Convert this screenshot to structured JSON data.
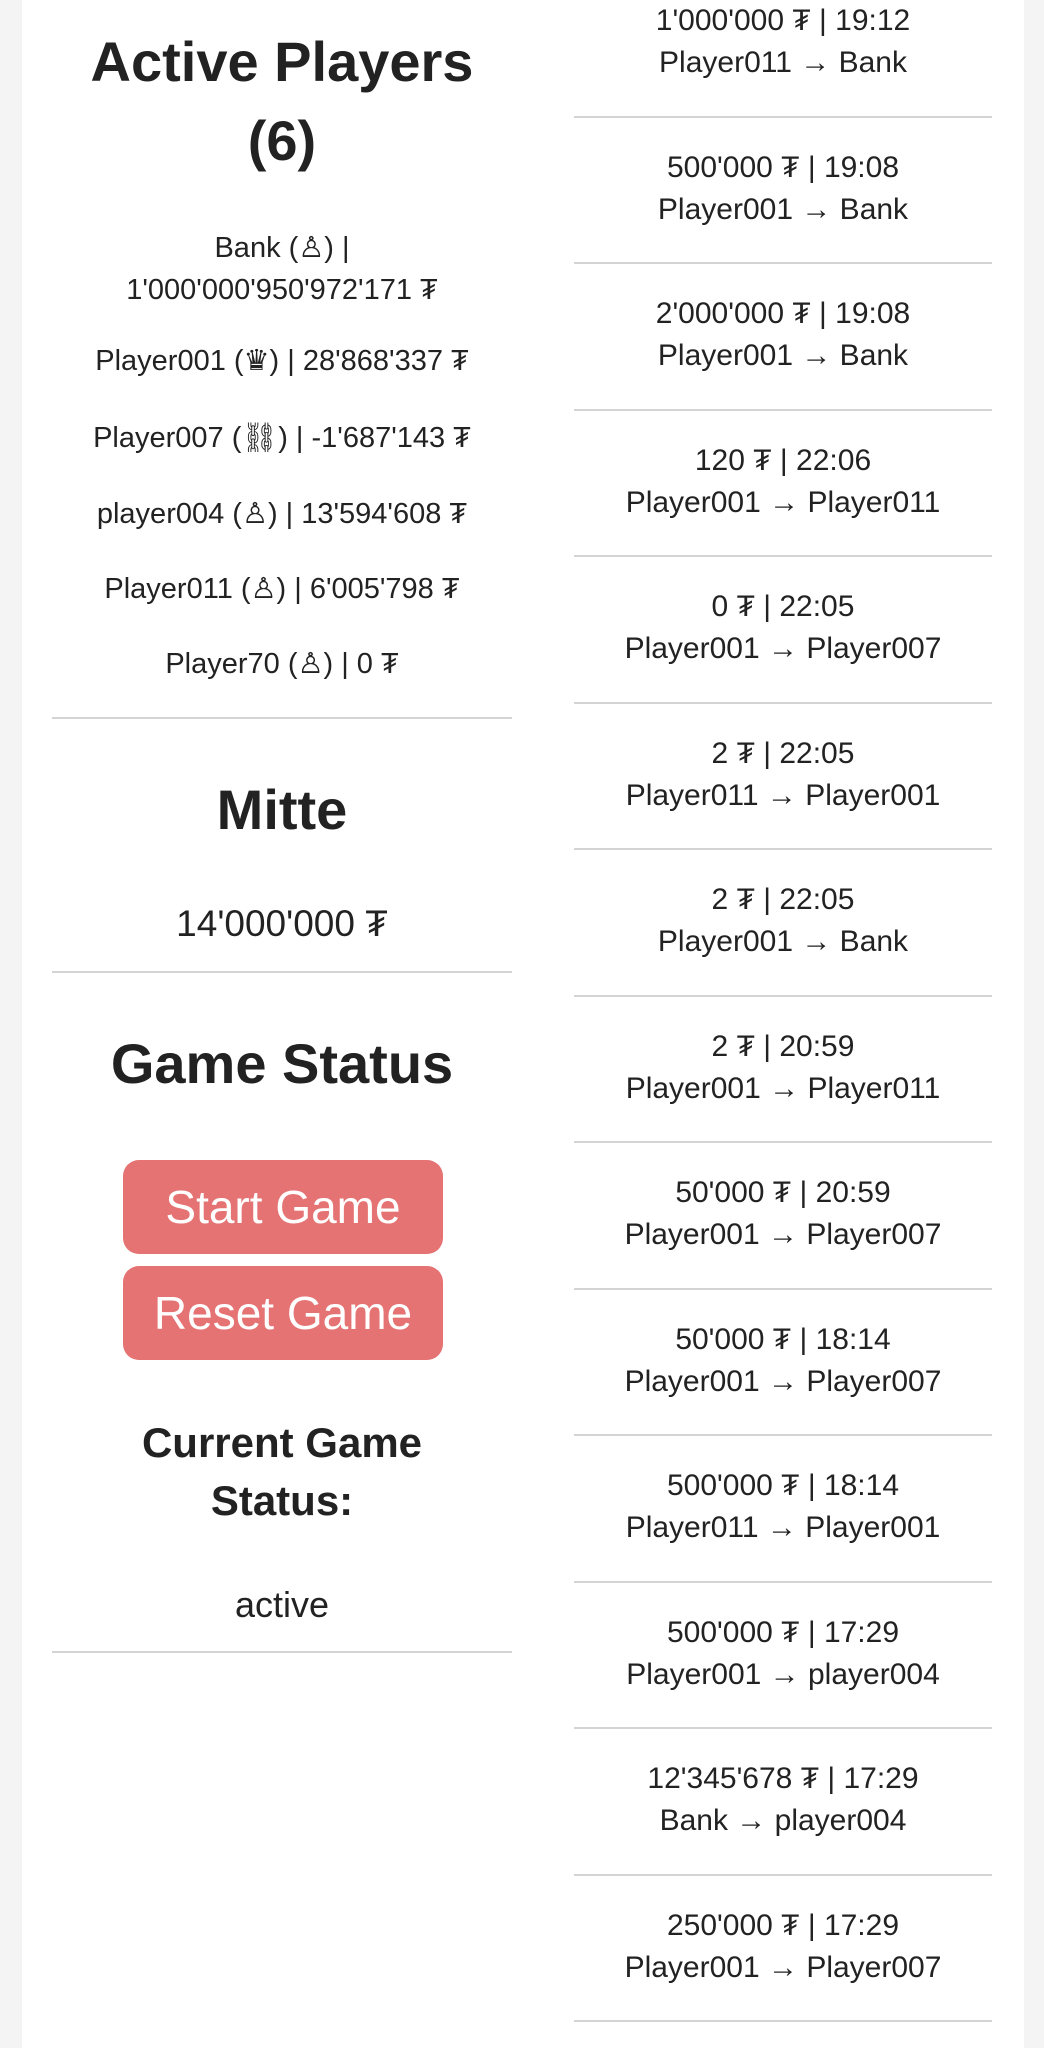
{
  "active_players": {
    "title_line1": "Active Players",
    "title_line2": "(6)",
    "players": [
      {
        "lines": [
          "Bank (♙) |",
          "1'000'000'950'972'171 ₮"
        ],
        "role_icon": "pawn-icon"
      },
      {
        "lines": [
          "Player001 (♛) | 28'868'337 ₮"
        ],
        "role_icon": "queen-icon"
      },
      {
        "lines": [
          "Player007 (⛓) | -1'687'143 ₮"
        ],
        "role_icon": "chains-icon"
      },
      {
        "lines": [
          "player004 (♙) | 13'594'608 ₮"
        ],
        "role_icon": "pawn-icon"
      },
      {
        "lines": [
          "Player011 (♙) | 6'005'798 ₮"
        ],
        "role_icon": "pawn-icon"
      },
      {
        "lines": [
          "Player70 (♙) | 0 ₮"
        ],
        "role_icon": "pawn-icon"
      }
    ]
  },
  "mitte": {
    "title": "Mitte",
    "amount": "14'000'000 ₮"
  },
  "game_status": {
    "title": "Game Status",
    "start_label": "Start Game",
    "reset_label": "Reset Game",
    "current_label_line1": "Current Game",
    "current_label_line2": "Status:",
    "current_value": "active",
    "button_color": "#e57373"
  },
  "transactions": [
    {
      "amount_time": "1'000'000 ₮ | 19:12",
      "route": "Player011 → Bank"
    },
    {
      "amount_time": "500'000 ₮ | 19:08",
      "route": "Player001 → Bank"
    },
    {
      "amount_time": "2'000'000 ₮ | 19:08",
      "route": "Player001 → Bank"
    },
    {
      "amount_time": "120 ₮ | 22:06",
      "route": "Player001 → Player011"
    },
    {
      "amount_time": "0 ₮ | 22:05",
      "route": "Player001 → Player007"
    },
    {
      "amount_time": "2 ₮ | 22:05",
      "route": "Player011 → Player001"
    },
    {
      "amount_time": "2 ₮ | 22:05",
      "route": "Player001 → Bank"
    },
    {
      "amount_time": "2 ₮ | 20:59",
      "route": "Player001 → Player011"
    },
    {
      "amount_time": "50'000 ₮ | 20:59",
      "route": "Player001 → Player007"
    },
    {
      "amount_time": "50'000 ₮ | 18:14",
      "route": "Player001 → Player007"
    },
    {
      "amount_time": "500'000 ₮ | 18:14",
      "route": "Player011 → Player001"
    },
    {
      "amount_time": "500'000 ₮ | 17:29",
      "route": "Player001 → player004"
    },
    {
      "amount_time": "12'345'678 ₮ | 17:29",
      "route": "Bank → player004"
    },
    {
      "amount_time": "250'000 ₮ | 17:29",
      "route": "Player001 → Player007"
    }
  ]
}
